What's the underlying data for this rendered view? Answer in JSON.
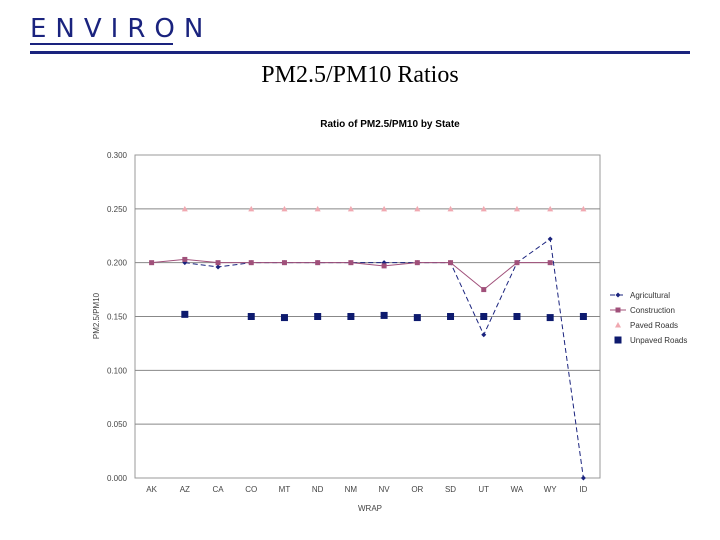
{
  "header": {
    "logo_text": "ENVIRON",
    "slide_title": "PM2.5/PM10 Ratios"
  },
  "chart_data": {
    "type": "line",
    "title": "Ratio of PM2.5/PM10 by State",
    "xlabel": "WRAP",
    "ylabel": "PM2.5/PM10",
    "categories": [
      "AK",
      "AZ",
      "CA",
      "CO",
      "MT",
      "ND",
      "NM",
      "NV",
      "OR",
      "SD",
      "UT",
      "WA",
      "WY",
      "ID"
    ],
    "ylim": [
      0,
      0.3
    ],
    "yticks": [
      "0.000",
      "0.050",
      "0.100",
      "0.150",
      "0.200",
      "0.250",
      "0.300"
    ],
    "grid": true,
    "legend_position": "right",
    "series": [
      {
        "name": "Agricultural",
        "color": "#1a237e",
        "marker": "diamond",
        "dash": "5,3",
        "values": [
          null,
          0.2,
          0.196,
          0.2,
          0.2,
          0.2,
          0.2,
          0.2,
          0.2,
          0.2,
          0.133,
          0.2,
          0.222,
          0.0
        ]
      },
      {
        "name": "Construction",
        "color": "#a0507a",
        "marker": "square-small",
        "dash": "",
        "values": [
          0.2,
          0.203,
          0.2,
          0.2,
          0.2,
          0.2,
          0.2,
          0.197,
          0.2,
          0.2,
          0.175,
          0.2,
          0.2,
          null
        ]
      },
      {
        "name": "Paved Roads",
        "color": "#f0a8b0",
        "marker": "triangle",
        "dash": "",
        "values": [
          null,
          0.25,
          null,
          0.25,
          0.25,
          0.25,
          0.25,
          0.25,
          0.25,
          0.25,
          0.25,
          0.25,
          0.25,
          0.25
        ]
      },
      {
        "name": "Unpaved Roads",
        "color": "#0d1a6e",
        "marker": "square",
        "dash": "",
        "values": [
          null,
          0.152,
          null,
          0.15,
          0.149,
          0.15,
          0.15,
          0.151,
          0.149,
          0.15,
          0.15,
          0.15,
          0.149,
          0.15
        ]
      }
    ]
  }
}
